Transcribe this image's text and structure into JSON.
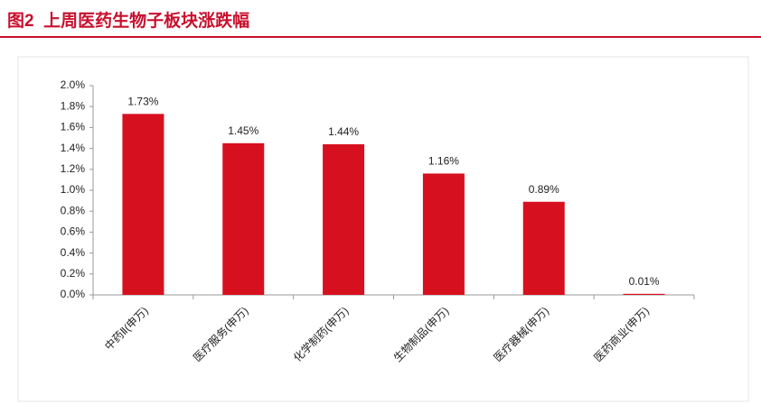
{
  "chart_data": {
    "type": "bar",
    "title": "图2  上周医药生物子板块涨跌幅",
    "categories": [
      "中药Ⅱ(申万)",
      "医疗服务(申万)",
      "化学制药(申万)",
      "生物制品(申万)",
      "医疗器械(申万)",
      "医药商业(申万)"
    ],
    "values": [
      1.73,
      1.45,
      1.44,
      1.16,
      0.89,
      0.01
    ],
    "value_labels": [
      "1.73%",
      "1.45%",
      "1.44%",
      "1.16%",
      "0.89%",
      "0.01%"
    ],
    "color": "#d7101f",
    "ylim": [
      0,
      2.0
    ],
    "yticks": [
      {
        "value": 0,
        "label": "0.0%"
      },
      {
        "value": 0.2,
        "label": "0.2%"
      },
      {
        "value": 0.4,
        "label": "0.4%"
      },
      {
        "value": 0.6,
        "label": "0.6%"
      },
      {
        "value": 0.8,
        "label": "0.8%"
      },
      {
        "value": 1.0,
        "label": "1.0%"
      },
      {
        "value": 1.2,
        "label": "1.2%"
      },
      {
        "value": 1.4,
        "label": "1.4%"
      },
      {
        "value": 1.6,
        "label": "1.6%"
      },
      {
        "value": 1.8,
        "label": "1.8%"
      },
      {
        "value": 2.0,
        "label": "2.0%"
      }
    ],
    "grid": false
  }
}
